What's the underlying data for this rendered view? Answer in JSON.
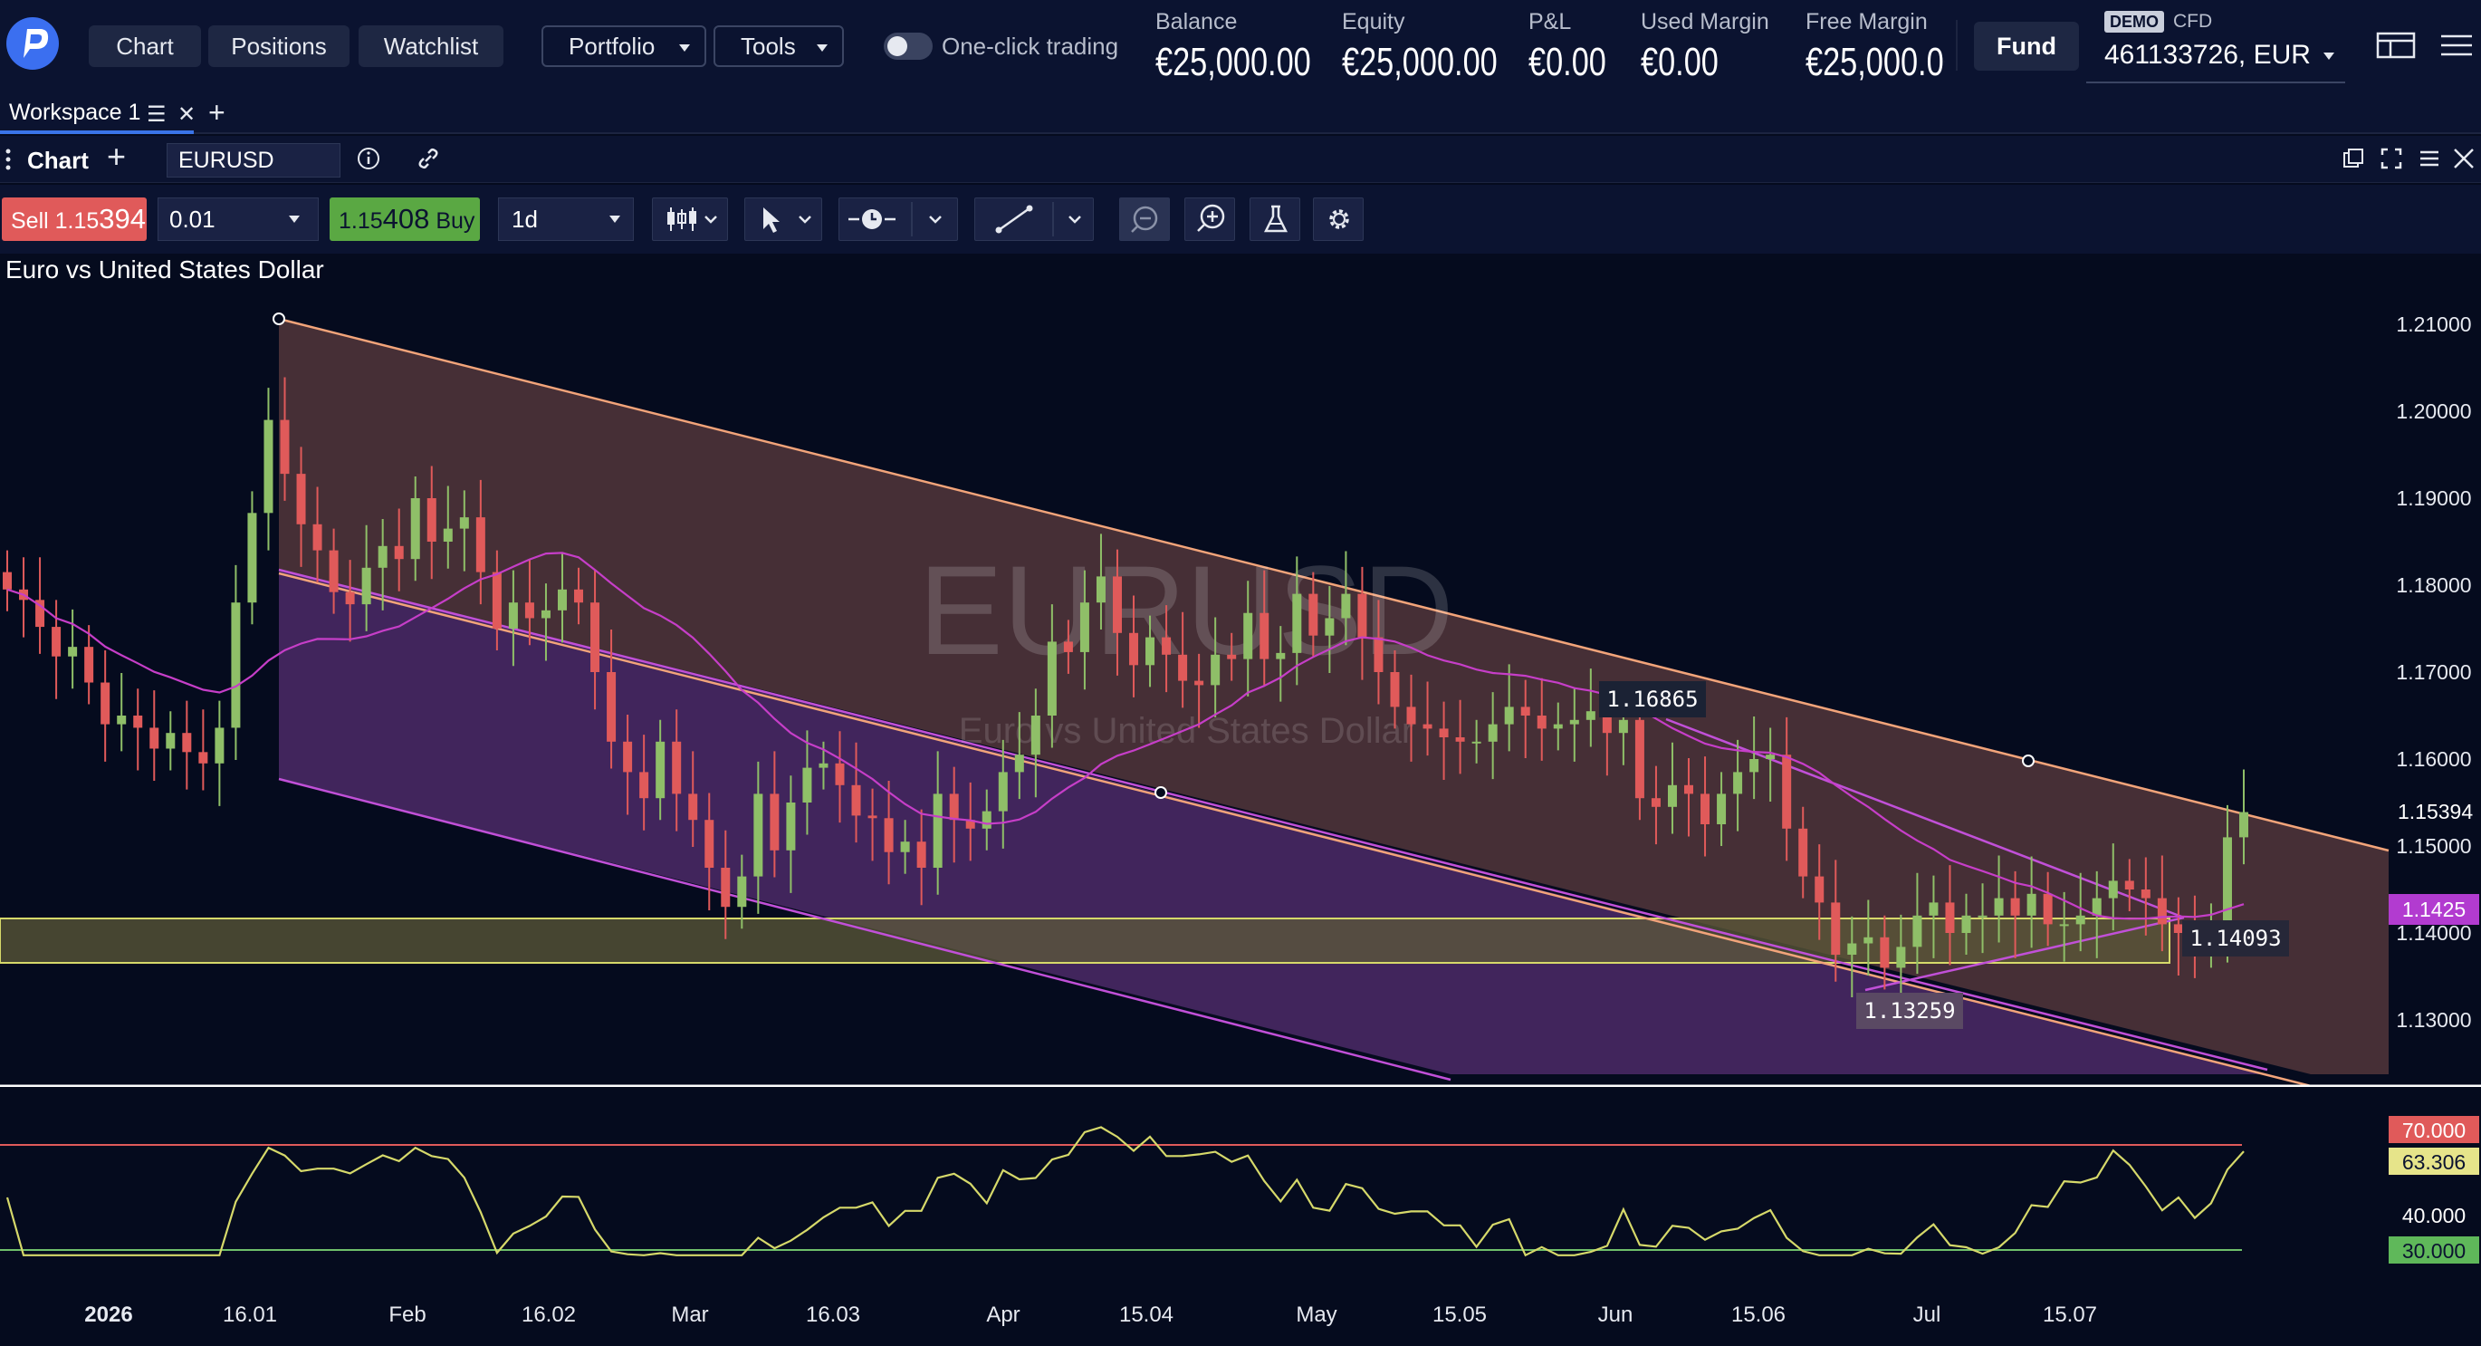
{
  "header": {
    "logo": "plus500-logo-icon",
    "nav": [
      "Chart",
      "Positions",
      "Watchlist"
    ],
    "menus": [
      "Portfolio",
      "Tools"
    ],
    "one_click_label": "One-click trading",
    "stats": [
      {
        "label": "Balance",
        "value": "€25,000.00"
      },
      {
        "label": "Equity",
        "value": "€25,000.00"
      },
      {
        "label": "P&L",
        "value": "€0.00"
      },
      {
        "label": "Used Margin",
        "value": "€0.00"
      },
      {
        "label": "Free Margin",
        "value": "€25,000.00"
      }
    ],
    "fund_label": "Fund",
    "demo_badge": "DEMO",
    "account_type": "CFD",
    "account_id": "461133726, EUR"
  },
  "workspace": {
    "tab_label": "Workspace 1"
  },
  "chart_panel": {
    "title": "Chart",
    "symbol": "EURUSD"
  },
  "toolbar": {
    "sell_prefix": "Sell 1.15",
    "sell_big": "394",
    "quantity": "0.01",
    "buy_prefix": "1.15",
    "buy_big": "408",
    "buy_suffix": " Buy",
    "timeframe": "1d"
  },
  "chart": {
    "instrument_name": "Euro vs United States Dollar",
    "watermark_symbol": "EURUSD",
    "watermark_name": "Euro vs United States Dollar",
    "price_axis": [
      "1.21000",
      "1.20000",
      "1.19000",
      "1.18000",
      "1.17000",
      "1.16000",
      "1.15000",
      "1.14000",
      "1.13000"
    ],
    "current_price_label": "1.15394",
    "marker_label": "1.1425",
    "annotations": [
      "1.16865",
      "1.14093",
      "1.13259"
    ],
    "rsi_levels": {
      "upper": "70.000",
      "value": "63.306",
      "mid": "40.000",
      "lower": "30.000"
    },
    "time_axis": [
      "2026",
      "16.01",
      "Feb",
      "16.02",
      "Mar",
      "16.03",
      "Apr",
      "15.04",
      "May",
      "15.05",
      "Jun",
      "15.06",
      "Jul",
      "15.07"
    ],
    "colors": {
      "up": "#8fbf68",
      "down": "#e05a5a",
      "ma": "#c63ec8",
      "channel_top": "#f2a47a",
      "channel_purple": "#c150d8",
      "zone": "#d6d96a",
      "rsi": "#d6d96a"
    }
  },
  "chart_data": {
    "type": "candlestick",
    "title": "Euro vs United States Dollar",
    "ylabel": "",
    "ylim": [
      1.1225,
      1.2137
    ],
    "series": [
      {
        "name": "",
        "values": [
          1.1795,
          1.1783,
          1.1752,
          1.1718,
          1.1729,
          1.1688,
          1.164,
          1.165,
          1.1636,
          1.1612,
          1.163,
          1.1608,
          1.1595,
          1.1636,
          1.178,
          1.1883,
          1.199,
          1.1928,
          1.187,
          1.184,
          1.1792,
          1.1778,
          1.182,
          1.1845,
          1.183,
          1.19,
          1.185,
          1.1865,
          1.1878,
          1.1815,
          1.175,
          1.178,
          1.1762,
          1.1771,
          1.1795,
          1.178,
          1.17,
          1.162,
          1.1585,
          1.1555,
          1.162,
          1.156,
          1.153,
          1.1475,
          1.143,
          1.1465,
          1.156,
          1.1495,
          1.155,
          1.159,
          1.1595,
          1.157,
          1.1535,
          1.1532,
          1.1493,
          1.1505,
          1.1475,
          1.156,
          1.153,
          1.152,
          1.154,
          1.1585,
          1.1605,
          1.165,
          1.1735,
          1.1723,
          1.178,
          1.181,
          1.1745,
          1.1708,
          1.174,
          1.172,
          1.169,
          1.1685,
          1.172,
          1.1715,
          1.1768,
          1.1715,
          1.1722,
          1.179,
          1.1742,
          1.1762,
          1.179,
          1.174,
          1.17,
          1.166,
          1.164,
          1.1635,
          1.1625,
          1.162,
          1.162,
          1.164,
          1.166,
          1.165,
          1.1635,
          1.164,
          1.1645,
          1.1655,
          1.163,
          1.1645,
          1.1555,
          1.1545,
          1.157,
          1.156,
          1.1525,
          1.156,
          1.1585,
          1.16,
          1.1605,
          1.152,
          1.1465,
          1.1435,
          1.1375,
          1.1388,
          1.1395,
          1.136,
          1.1384,
          1.142,
          1.1435,
          1.14,
          1.142,
          1.142,
          1.144,
          1.142,
          1.1445,
          1.141,
          1.141,
          1.142,
          1.144,
          1.146,
          1.145,
          1.144,
          1.141,
          1.14,
          1.1385,
          1.1409,
          1.151,
          1.1539
        ]
      }
    ],
    "price_labels": [
      1.1687,
      1.1409,
      1.1326,
      1.1425,
      1.15394
    ],
    "rsi": {
      "ylim": [
        30,
        70
      ],
      "last": 63.306,
      "levels": [
        70,
        40,
        30
      ]
    }
  }
}
